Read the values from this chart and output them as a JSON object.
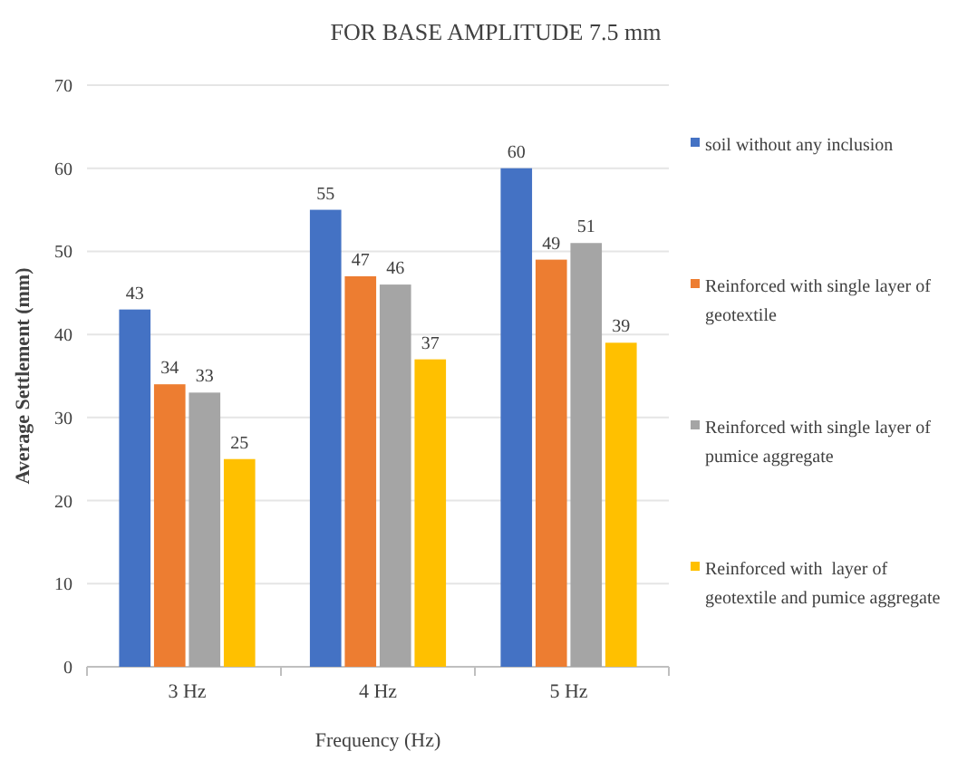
{
  "chart_data": {
    "type": "bar",
    "title": "FOR BASE AMPLITUDE 7.5 mm",
    "xlabel": "Frequency (Hz)",
    "ylabel": "Average Settlement (mm)",
    "categories": [
      "3 Hz",
      "4 Hz",
      "5 Hz"
    ],
    "series": [
      {
        "name": "soil without any inclusion",
        "color": "#4472c4",
        "values": [
          43,
          55,
          60
        ]
      },
      {
        "name": "Reinforced with single layer of geotextile",
        "color": "#ed7d31",
        "values": [
          34,
          47,
          49
        ]
      },
      {
        "name": "Reinforced with single layer of pumice aggregate",
        "color": "#a5a5a5",
        "values": [
          33,
          46,
          51
        ]
      },
      {
        "name": "Reinforced with  layer of geotextile and pumice aggregate",
        "color": "#ffc000",
        "values": [
          25,
          37,
          39
        ]
      }
    ],
    "ylim": [
      0,
      70
    ],
    "yticks": [
      0,
      10,
      20,
      30,
      40,
      50,
      60,
      70
    ],
    "grid": "y",
    "legend": "right",
    "data_labels": true
  }
}
